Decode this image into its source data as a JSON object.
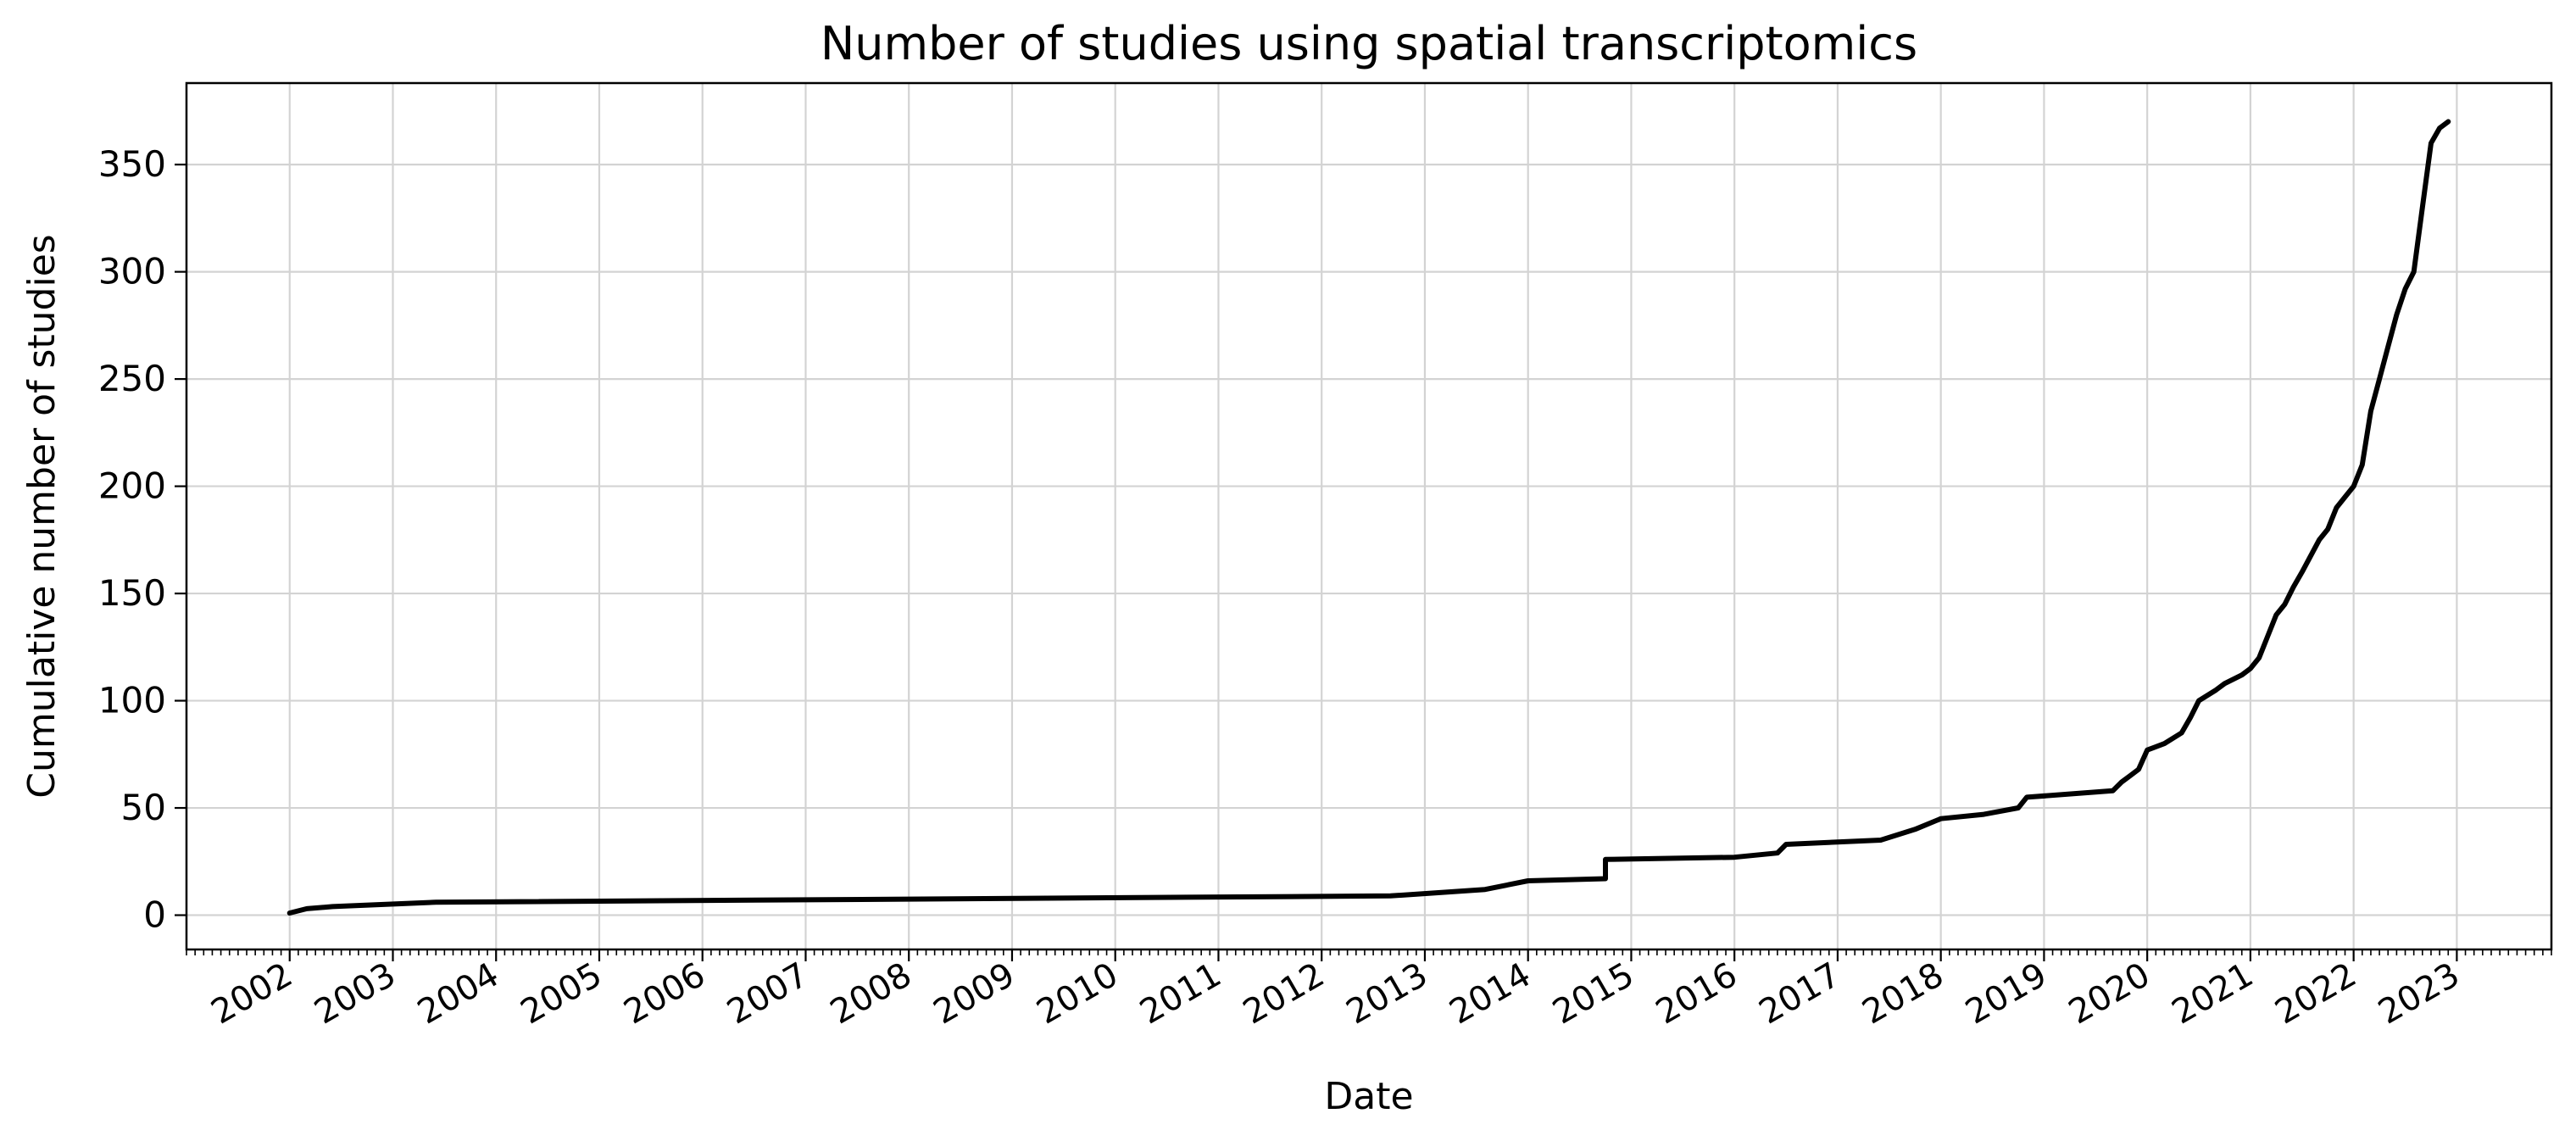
{
  "chart_data": {
    "type": "line",
    "title": "Number of studies using spatial transcriptomics",
    "xlabel": "Date",
    "ylabel": "Cumulative number of studies",
    "xlim": [
      "2001-01",
      "2023-12"
    ],
    "ylim": [
      -16,
      388
    ],
    "x_ticks": [
      "2002",
      "2003",
      "2004",
      "2005",
      "2006",
      "2007",
      "2008",
      "2009",
      "2010",
      "2011",
      "2012",
      "2013",
      "2014",
      "2015",
      "2016",
      "2017",
      "2018",
      "2019",
      "2020",
      "2021",
      "2022",
      "2023"
    ],
    "y_ticks": [
      0,
      50,
      100,
      150,
      200,
      250,
      300,
      350
    ],
    "grid": true,
    "line_color": "#000000",
    "grid_color": "#d3d3d3",
    "series": [
      {
        "x": [
          "2002-01",
          "2002-03",
          "2002-06",
          "2003-06",
          "2012-09",
          "2013-08",
          "2014-01",
          "2014-10",
          "2014-10",
          "2016-01",
          "2016-06",
          "2016-07",
          "2017-06",
          "2017-10",
          "2018-01",
          "2018-06",
          "2018-10",
          "2018-11",
          "2019-09",
          "2019-10",
          "2019-11",
          "2019-12",
          "2020-01",
          "2020-03",
          "2020-05",
          "2020-06",
          "2020-07",
          "2020-09",
          "2020-10",
          "2020-12",
          "2021-01",
          "2021-02",
          "2021-03",
          "2021-04",
          "2021-05",
          "2021-06",
          "2021-07",
          "2021-09",
          "2021-10",
          "2021-11",
          "2021-12",
          "2022-01",
          "2022-02",
          "2022-03",
          "2022-04",
          "2022-05",
          "2022-06",
          "2022-07",
          "2022-08",
          "2022-09",
          "2022-10",
          "2022-11",
          "2022-12"
        ],
        "y": [
          1,
          3,
          4,
          6,
          9,
          12,
          16,
          17,
          26,
          27,
          29,
          33,
          35,
          40,
          45,
          47,
          50,
          55,
          58,
          62,
          65,
          68,
          77,
          80,
          85,
          92,
          100,
          105,
          108,
          112,
          115,
          120,
          130,
          140,
          145,
          153,
          160,
          175,
          180,
          190,
          195,
          200,
          210,
          235,
          250,
          265,
          280,
          292,
          300,
          330,
          360,
          367,
          370
        ]
      }
    ]
  }
}
